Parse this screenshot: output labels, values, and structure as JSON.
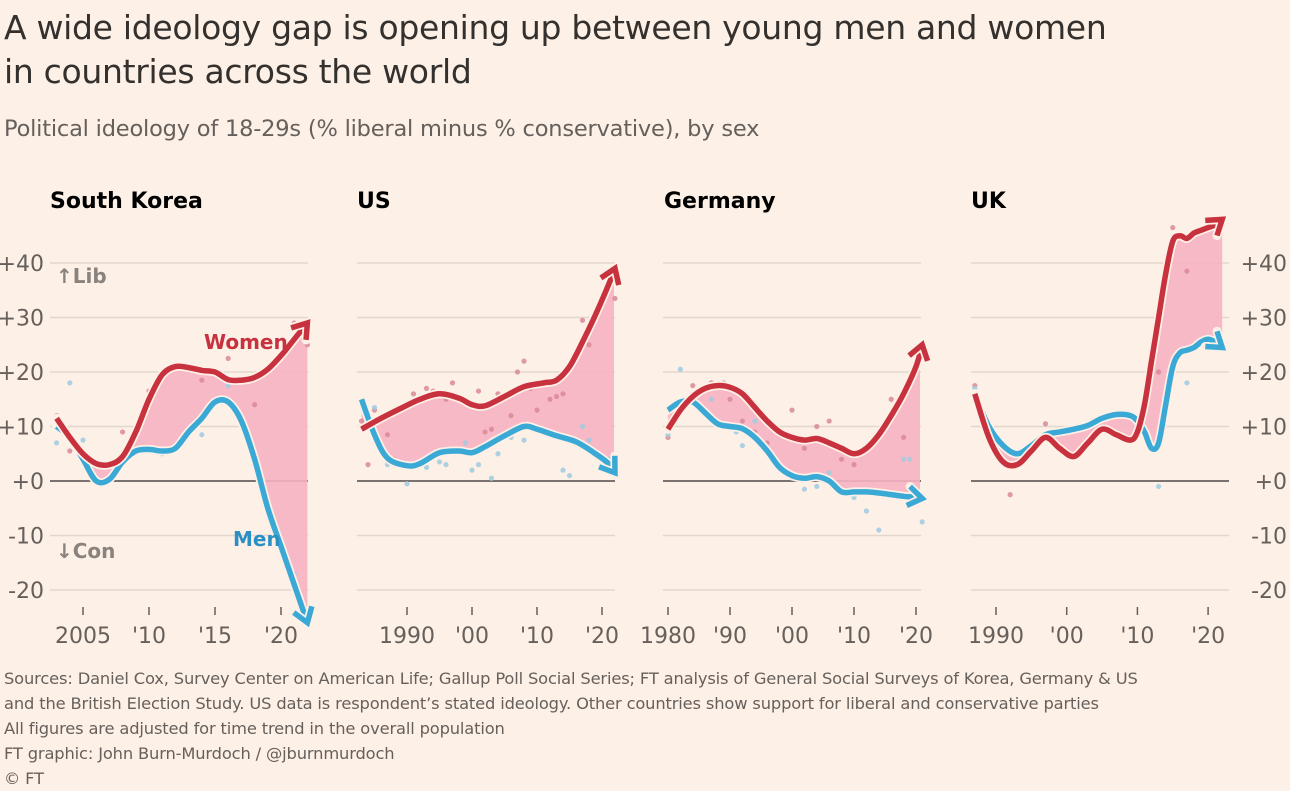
{
  "header": {
    "title_line1": "A wide ideology gap is opening up between young men and women",
    "title_line2": "in countries across the world",
    "subtitle": "Political ideology of 18-29s (% liberal minus % conservative), by sex"
  },
  "footer": {
    "line1": "Sources: Daniel Cox, Survey Center on American Life; Gallup Poll Social Series; FT analysis of General Social Surveys of Korea, Germany & US",
    "line2": "and the British Election Study. US data is respondent’s stated ideology. Other countries show support for liberal and conservative parties",
    "line3": "All figures are adjusted for time trend in the overall population",
    "line4": "FT graphic: John Burn-Murdoch / @jburnmurdoch",
    "line5": "© FT"
  },
  "colors": {
    "background": "#fdf0e6",
    "women": "#c8313e",
    "men": "#3ba9d6",
    "gap_fill": "#f7b3c2",
    "grid": "#e3d7cd",
    "zero_line": "#66605c"
  },
  "chart_data": [
    {
      "type": "line",
      "title": "South Korea",
      "ylabel": "% liberal minus % conservative",
      "ylim": [
        -20,
        40
      ],
      "yticks": [
        "+40",
        "+30",
        "+20",
        "+10",
        "+0",
        "-10",
        "-20"
      ],
      "yaxis_side": "left",
      "xlim": [
        2002.5,
        2022
      ],
      "xticks": [
        {
          "value": 2005,
          "label": "2005"
        },
        {
          "value": 2010,
          "label": "'10"
        },
        {
          "value": 2015,
          "label": "'15"
        },
        {
          "value": 2020,
          "label": "'20"
        }
      ],
      "annotations": [
        "↑Lib",
        "↓Con",
        "Women",
        "Men"
      ],
      "series": [
        {
          "name": "Women",
          "x": [
            2003,
            2004,
            2005,
            2006,
            2007,
            2008,
            2009,
            2010,
            2011,
            2012,
            2013,
            2014,
            2015,
            2016,
            2017,
            2018,
            2019,
            2020,
            2021,
            2022
          ],
          "values": [
            11.5,
            8,
            5,
            3.2,
            3,
            4.5,
            9,
            15,
            19.5,
            21,
            20.8,
            20.3,
            20,
            18.6,
            18.5,
            19,
            20.5,
            23,
            26,
            29
          ]
        },
        {
          "name": "Men",
          "x": [
            2003,
            2004,
            2005,
            2006,
            2007,
            2008,
            2009,
            2010,
            2011,
            2012,
            2013,
            2014,
            2015,
            2016,
            2017,
            2018,
            2019,
            2020,
            2021,
            2022
          ],
          "values": [
            10,
            8,
            4,
            0,
            0.3,
            3.5,
            5.5,
            5.8,
            5.5,
            6,
            9,
            11.5,
            14.5,
            14.5,
            11,
            4,
            -5,
            -12,
            -19,
            -26
          ]
        }
      ],
      "points_women": [
        [
          2003,
          12
        ],
        [
          2004,
          5.5
        ],
        [
          2008,
          9
        ],
        [
          2010,
          16.5
        ],
        [
          2014,
          18.5
        ],
        [
          2016,
          22.5
        ],
        [
          2018,
          14
        ],
        [
          2021,
          29
        ],
        [
          2022,
          25
        ]
      ],
      "points_men": [
        [
          2003,
          7
        ],
        [
          2004,
          18
        ],
        [
          2005,
          7.5
        ],
        [
          2009,
          5.5
        ],
        [
          2011,
          5
        ],
        [
          2014,
          8.5
        ],
        [
          2016,
          17.5
        ],
        [
          2021,
          -17
        ]
      ]
    },
    {
      "type": "line",
      "title": "US",
      "ylim": [
        -20,
        40
      ],
      "xlim": [
        1982,
        2022
      ],
      "xticks": [
        {
          "value": 1990,
          "label": "1990"
        },
        {
          "value": 2000,
          "label": "'00"
        },
        {
          "value": 2010,
          "label": "'10"
        },
        {
          "value": 2020,
          "label": "'20"
        }
      ],
      "series": [
        {
          "name": "Women",
          "x": [
            1983,
            1986,
            1989,
            1992,
            1995,
            1998,
            2000,
            2002,
            2005,
            2008,
            2011,
            2013,
            2015,
            2017,
            2019,
            2021,
            2022
          ],
          "values": [
            9.5,
            11.5,
            13.3,
            15,
            16,
            15.2,
            14,
            13.8,
            15.5,
            17.3,
            18,
            18.5,
            21,
            25.5,
            30.5,
            36,
            39
          ]
        },
        {
          "name": "Men",
          "x": [
            1983,
            1985,
            1987,
            1990,
            1992,
            1995,
            1998,
            2000,
            2002,
            2005,
            2008,
            2010,
            2013,
            2016,
            2019,
            2021,
            2022
          ],
          "values": [
            15,
            8.5,
            4.2,
            2.8,
            3.2,
            5.2,
            5.5,
            5.2,
            6.3,
            8.3,
            10,
            9.5,
            8.3,
            7.2,
            5,
            3.2,
            1.5
          ]
        }
      ],
      "points_women": [
        [
          1983,
          11
        ],
        [
          1984,
          3
        ],
        [
          1985,
          13
        ],
        [
          1987,
          8.5
        ],
        [
          1988,
          4
        ],
        [
          1991,
          16
        ],
        [
          1993,
          17
        ],
        [
          1994,
          16.5
        ],
        [
          1996,
          15
        ],
        [
          1997,
          18
        ],
        [
          2001,
          16.5
        ],
        [
          2002,
          9
        ],
        [
          2003,
          9.5
        ],
        [
          2004,
          16
        ],
        [
          2006,
          12
        ],
        [
          2007,
          20
        ],
        [
          2008,
          22
        ],
        [
          2009,
          17
        ],
        [
          2010,
          13
        ],
        [
          2012,
          15
        ],
        [
          2013,
          15.5
        ],
        [
          2014,
          16
        ],
        [
          2016,
          23
        ],
        [
          2017,
          29.5
        ],
        [
          2018,
          25
        ],
        [
          2021,
          37
        ],
        [
          2022,
          33.5
        ]
      ],
      "points_men": [
        [
          1985,
          13.5
        ],
        [
          1987,
          3
        ],
        [
          1990,
          -0.5
        ],
        [
          1993,
          2.5
        ],
        [
          1995,
          3.5
        ],
        [
          1996,
          3
        ],
        [
          1999,
          7
        ],
        [
          2000,
          2
        ],
        [
          2001,
          3
        ],
        [
          2003,
          0.5
        ],
        [
          2004,
          5
        ],
        [
          2006,
          8
        ],
        [
          2007,
          10
        ],
        [
          2008,
          7.5
        ],
        [
          2014,
          2
        ],
        [
          2015,
          1
        ],
        [
          2017,
          10
        ],
        [
          2018,
          7.5
        ],
        [
          2020,
          2.5
        ],
        [
          2021,
          4
        ]
      ]
    },
    {
      "type": "line",
      "title": "Germany",
      "ylim": [
        -20,
        40
      ],
      "xlim": [
        1979,
        2022
      ],
      "xticks": [
        {
          "value": 1980,
          "label": "1980"
        },
        {
          "value": 1990,
          "label": "'90"
        },
        {
          "value": 2000,
          "label": "'00"
        },
        {
          "value": 2010,
          "label": "'10"
        },
        {
          "value": 2020,
          "label": "'20"
        }
      ],
      "series": [
        {
          "name": "Women",
          "x": [
            1980,
            1982,
            1984,
            1986,
            1988,
            1990,
            1992,
            1994,
            1996,
            1998,
            2000,
            2002,
            2004,
            2006,
            2008,
            2010,
            2012,
            2014,
            2016,
            2018,
            2020,
            2021
          ],
          "values": [
            9.5,
            13,
            15.5,
            17,
            17.5,
            17.2,
            16,
            13.5,
            11,
            9,
            8,
            7.5,
            7.8,
            7,
            6,
            5,
            6,
            8.5,
            12,
            16,
            21,
            25
          ]
        },
        {
          "name": "Men",
          "x": [
            1980,
            1982,
            1984,
            1986,
            1988,
            1990,
            1992,
            1994,
            1996,
            1998,
            2000,
            2002,
            2004,
            2006,
            2008,
            2010,
            2012,
            2014,
            2016,
            2018,
            2020,
            2021
          ],
          "values": [
            13,
            14.5,
            14.5,
            12.5,
            10.5,
            10,
            9.6,
            8,
            5.5,
            2.5,
            1,
            0.5,
            0.8,
            0,
            -2,
            -2,
            -2,
            -2.2,
            -2.5,
            -2.8,
            -3,
            -3.2
          ]
        }
      ],
      "points_women": [
        [
          1980,
          8
        ],
        [
          1982,
          14
        ],
        [
          1984,
          17.5
        ],
        [
          1987,
          18
        ],
        [
          1988,
          17.5
        ],
        [
          1989,
          18
        ],
        [
          1990,
          15
        ],
        [
          1992,
          11
        ],
        [
          1994,
          9
        ],
        [
          1996,
          7
        ],
        [
          2000,
          13
        ],
        [
          2002,
          6
        ],
        [
          2004,
          10
        ],
        [
          2006,
          11
        ],
        [
          2008,
          4
        ],
        [
          2010,
          3
        ],
        [
          2016,
          15
        ],
        [
          2018,
          8
        ]
      ],
      "points_men": [
        [
          1980,
          8.5
        ],
        [
          1982,
          20.5
        ],
        [
          1984,
          16
        ],
        [
          1987,
          15
        ],
        [
          1989,
          10
        ],
        [
          1991,
          9
        ],
        [
          1992,
          6.5
        ],
        [
          1994,
          11
        ],
        [
          2000,
          0.5
        ],
        [
          2002,
          -1.5
        ],
        [
          2004,
          -1
        ],
        [
          2006,
          1.5
        ],
        [
          2010,
          -3
        ],
        [
          2012,
          -5.5
        ],
        [
          2014,
          -9
        ],
        [
          2018,
          4
        ],
        [
          2019,
          4
        ],
        [
          2021,
          -7.5
        ]
      ]
    },
    {
      "type": "line",
      "title": "UK",
      "ylim": [
        -20,
        40
      ],
      "yticks": [
        "+40",
        "+30",
        "+20",
        "+10",
        "+0",
        "-10",
        "-20"
      ],
      "yaxis_side": "right",
      "xlim": [
        1986.5,
        2023
      ],
      "xticks": [
        {
          "value": 1990,
          "label": "1990"
        },
        {
          "value": 2000,
          "label": "'00"
        },
        {
          "value": 2010,
          "label": "'10"
        },
        {
          "value": 2020,
          "label": "'20"
        }
      ],
      "series": [
        {
          "name": "Women",
          "x": [
            1987,
            1989,
            1991,
            1993,
            1995,
            1997,
            1999,
            2001,
            2003,
            2005,
            2007,
            2009,
            2010,
            2011,
            2012,
            2013,
            2014,
            2015,
            2016,
            2017,
            2018,
            2019,
            2020,
            2021,
            2022
          ],
          "values": [
            16,
            8,
            3.5,
            3,
            5.5,
            8,
            6,
            4.5,
            7,
            9.5,
            8.5,
            7.5,
            9,
            14,
            22,
            30,
            38,
            44,
            45,
            44.5,
            45.5,
            46,
            46.5,
            47,
            48
          ]
        },
        {
          "name": "Men",
          "x": [
            1987,
            1989,
            1991,
            1993,
            1995,
            1997,
            1999,
            2001,
            2003,
            2005,
            2007,
            2009,
            2010,
            2011,
            2012,
            2013,
            2014,
            2015,
            2016,
            2017,
            2018,
            2019,
            2020,
            2021,
            2022
          ],
          "values": [
            16,
            10,
            6.5,
            5,
            6.5,
            8.5,
            9,
            9.5,
            10.2,
            11.5,
            12.2,
            12,
            11,
            9,
            6,
            7,
            14,
            21,
            23.5,
            24,
            24.5,
            25.5,
            26,
            25.5,
            24.5
          ]
        }
      ],
      "points_women": [
        [
          1987,
          17.5
        ],
        [
          1992,
          -2.5
        ],
        [
          1997,
          10.5
        ],
        [
          2013,
          20
        ],
        [
          2015,
          46.5
        ],
        [
          2017,
          38.5
        ],
        [
          2020,
          46.5
        ]
      ],
      "points_men": [
        [
          1987,
          17
        ],
        [
          2011,
          13
        ],
        [
          2013,
          -1
        ],
        [
          2015,
          21.5
        ],
        [
          2017,
          18
        ],
        [
          2020,
          25
        ]
      ]
    }
  ]
}
